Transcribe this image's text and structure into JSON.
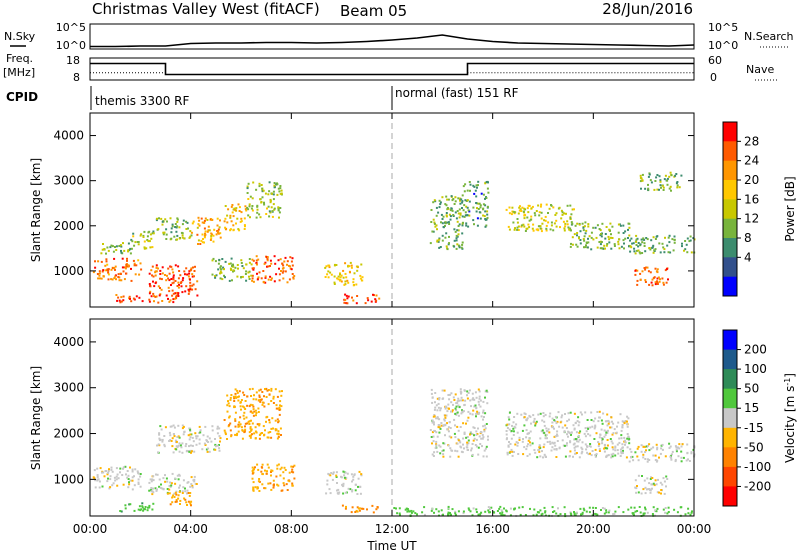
{
  "header": {
    "station": "Christmas Valley West (fitACF)",
    "beam": "Beam 05",
    "date": "28/Jun/2016"
  },
  "strips": {
    "nsky_label": "N.Sky",
    "nsearch_label": "N.Search",
    "noise_ticks": [
      "10^5",
      "10^0"
    ],
    "freq_label_1": "Freq.",
    "freq_label_2": "[MHz]",
    "freq_ticks": [
      "18",
      "8"
    ],
    "nave_label": "Nave",
    "nave_ticks": [
      "60",
      "0"
    ],
    "cpid_label": "CPID",
    "cpid_segments": [
      {
        "label": "themis 3300 RF",
        "start": 0,
        "end": 12
      },
      {
        "label": "normal (fast) 151 RF",
        "start": 12,
        "end": 24
      }
    ]
  },
  "colorbars": {
    "power_label": "Power [dB]",
    "power_ticks": [
      "28",
      "24",
      "20",
      "16",
      "12",
      "8",
      "4"
    ],
    "power_colors": [
      "#ff0000",
      "#ff5a00",
      "#ff9600",
      "#ffc800",
      "#c8c800",
      "#78b43c",
      "#3c8c6e",
      "#32508c",
      "#0000ff"
    ],
    "velocity_label_main": "Velocity [m s",
    "velocity_label_exp": "-1",
    "velocity_label_end": "]",
    "velocity_ticks": [
      "200",
      "100",
      "50",
      "15",
      "-15",
      "-50",
      "-100",
      "-200"
    ],
    "velocity_colors": [
      "#0000ff",
      "#1e5a8c",
      "#2e8b57",
      "#50c83c",
      "#c8c8c8",
      "#ffb400",
      "#ff8200",
      "#ff4600",
      "#ff0000"
    ]
  },
  "chart_data": {
    "type": "heatmap",
    "xlabel": "Time UT",
    "ylabel": "Slant Range [km]",
    "xlim": [
      0,
      24
    ],
    "ylim": [
      200,
      4500
    ],
    "x_ticks": [
      "00:00",
      "04:00",
      "08:00",
      "12:00",
      "16:00",
      "20:00",
      "00:00"
    ],
    "y_ticks": [
      1000,
      2000,
      3000,
      4000
    ],
    "noise_strip": {
      "x": [
        0,
        1,
        2,
        3,
        4,
        5,
        6,
        7,
        8,
        9,
        10,
        11,
        12,
        13,
        14,
        15,
        16,
        17,
        18,
        19,
        20,
        21,
        22,
        23,
        24
      ],
      "y": [
        0.5,
        0.5,
        0.6,
        0.6,
        1.1,
        1.2,
        1.2,
        1.3,
        1.3,
        1.2,
        1.3,
        1.5,
        1.8,
        2.2,
        2.8,
        2.0,
        1.5,
        1.2,
        1.1,
        1.0,
        0.9,
        0.8,
        0.7,
        0.6,
        0.8
      ]
    },
    "frequency_strip": {
      "x": [
        0,
        3,
        3,
        15,
        15,
        24
      ],
      "y": [
        15.5,
        15.5,
        10.5,
        10.5,
        15.5,
        15.5
      ]
    },
    "nave_strip": {
      "x": [
        0,
        3,
        3,
        15,
        15,
        24
      ],
      "y": [
        20,
        20,
        15,
        15,
        20,
        20
      ]
    },
    "power_regions": [
      {
        "t0": 0.1,
        "t1": 2.0,
        "r0": 800,
        "r1": 1300,
        "power": 24
      },
      {
        "t0": 2.3,
        "t1": 4.3,
        "r0": 450,
        "r1": 1150,
        "power": 26
      },
      {
        "t0": 0.4,
        "t1": 1.6,
        "r0": 1400,
        "r1": 1700,
        "power": 10
      },
      {
        "t0": 1.6,
        "t1": 2.6,
        "r0": 1500,
        "r1": 1900,
        "power": 12
      },
      {
        "t0": 2.6,
        "t1": 4.0,
        "r0": 1700,
        "r1": 2200,
        "power": 11
      },
      {
        "t0": 4.0,
        "t1": 5.2,
        "r0": 1600,
        "r1": 2200,
        "power": 20
      },
      {
        "t0": 5.3,
        "t1": 6.2,
        "r0": 1900,
        "r1": 2500,
        "power": 19
      },
      {
        "t0": 6.2,
        "t1": 7.6,
        "r0": 2200,
        "r1": 3000,
        "power": 12
      },
      {
        "t0": 6.4,
        "t1": 8.1,
        "r0": 750,
        "r1": 1350,
        "power": 25
      },
      {
        "t0": 4.8,
        "t1": 6.4,
        "r0": 800,
        "r1": 1300,
        "power": 11
      },
      {
        "t0": 9.3,
        "t1": 10.8,
        "r0": 700,
        "r1": 1200,
        "power": 17
      },
      {
        "t0": 1.0,
        "t1": 3.5,
        "r0": 320,
        "r1": 500,
        "power": 27
      },
      {
        "t0": 10.0,
        "t1": 11.5,
        "r0": 300,
        "r1": 500,
        "power": 26
      },
      {
        "t0": 13.5,
        "t1": 14.8,
        "r0": 1500,
        "r1": 2700,
        "power": 9
      },
      {
        "t0": 14.8,
        "t1": 15.8,
        "r0": 2000,
        "r1": 3000,
        "power": 8
      },
      {
        "t0": 16.5,
        "t1": 19.2,
        "r0": 1900,
        "r1": 2500,
        "power": 15
      },
      {
        "t0": 19.0,
        "t1": 21.4,
        "r0": 1500,
        "r1": 2100,
        "power": 10
      },
      {
        "t0": 21.4,
        "t1": 24.0,
        "r0": 1400,
        "r1": 1800,
        "power": 9
      },
      {
        "t0": 21.6,
        "t1": 23.0,
        "r0": 700,
        "r1": 1100,
        "power": 25
      },
      {
        "t0": 21.8,
        "t1": 23.5,
        "r0": 2800,
        "r1": 3200,
        "power": 10
      }
    ],
    "velocity_regions": [
      {
        "t0": 0.1,
        "t1": 2.0,
        "r0": 800,
        "r1": 1300,
        "velocity": 0
      },
      {
        "t0": 2.3,
        "t1": 4.3,
        "r0": 700,
        "r1": 1150,
        "velocity": 0
      },
      {
        "t0": 1.0,
        "t1": 2.6,
        "r0": 320,
        "r1": 500,
        "velocity": 35
      },
      {
        "t0": 2.6,
        "t1": 5.2,
        "r0": 1600,
        "r1": 2200,
        "velocity": 0
      },
      {
        "t0": 5.3,
        "t1": 7.6,
        "r0": 1900,
        "r1": 3000,
        "velocity": -40
      },
      {
        "t0": 3.0,
        "t1": 4.0,
        "r0": 450,
        "r1": 800,
        "velocity": -45
      },
      {
        "t0": 6.4,
        "t1": 8.1,
        "r0": 750,
        "r1": 1350,
        "velocity": -40
      },
      {
        "t0": 9.3,
        "t1": 10.8,
        "r0": 700,
        "r1": 1200,
        "velocity": 0
      },
      {
        "t0": 10.0,
        "t1": 11.5,
        "r0": 300,
        "r1": 450,
        "velocity": -60
      },
      {
        "t0": 13.5,
        "t1": 15.8,
        "r0": 1500,
        "r1": 3000,
        "velocity": 0
      },
      {
        "t0": 16.5,
        "t1": 21.4,
        "r0": 1500,
        "r1": 2500,
        "velocity": 0
      },
      {
        "t0": 21.4,
        "t1": 24.0,
        "r0": 1400,
        "r1": 1800,
        "velocity": 0
      },
      {
        "t0": 21.6,
        "t1": 23.0,
        "r0": 700,
        "r1": 1100,
        "velocity": 0
      },
      {
        "t0": 12.0,
        "t1": 24.0,
        "r0": 220,
        "r1": 420,
        "velocity": 30
      }
    ]
  }
}
